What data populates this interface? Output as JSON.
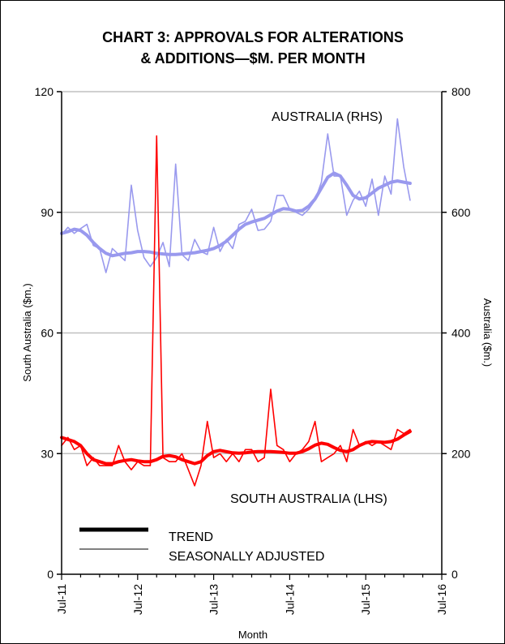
{
  "chart_data": {
    "type": "line",
    "title_line1": "CHART 3: APPROVALS FOR ALTERATIONS",
    "title_line2": "& ADDITIONS—$M. PER MONTH",
    "xlabel": "Month",
    "ylabel_left": "South Australia ($m.)",
    "ylabel_right": "Australia ($m.)",
    "ylim_left": [
      0,
      120
    ],
    "ylim_right": [
      0,
      800
    ],
    "yticks_left": [
      "0",
      "30",
      "60",
      "90",
      "120"
    ],
    "yticks_right": [
      "0",
      "200",
      "400",
      "600",
      "800"
    ],
    "xticks": [
      "Jul-11",
      "Jul-12",
      "Jul-13",
      "Jul-14",
      "Jul-15",
      "Jul-16"
    ],
    "grid": "horizontal",
    "x_start": "Jul-11",
    "x_end": "Jul-16",
    "annotations": {
      "australia": "AUSTRALIA (RHS)",
      "south_australia": "SOUTH AUSTRALIA (LHS)"
    },
    "legend": [
      {
        "label": "TREND",
        "style": "thick"
      },
      {
        "label": "SEASONALLY ADJUSTED",
        "style": "thin"
      }
    ],
    "colors": {
      "australia": "#9999ee",
      "south_australia": "#ff0000",
      "grid": "#c0c0c0"
    },
    "series": [
      {
        "axis": "right",
        "kind": "seasonally_adjusted",
        "color": "#9999ee",
        "values": [
          563,
          575,
          565,
          573,
          580,
          545,
          540,
          500,
          540,
          530,
          520,
          645,
          570,
          525,
          510,
          525,
          550,
          510,
          680,
          530,
          520,
          555,
          535,
          530,
          575,
          535,
          555,
          540,
          580,
          585,
          605,
          570,
          572,
          585,
          628,
          628,
          605,
          600,
          595,
          605,
          620,
          650,
          730,
          660,
          660,
          595,
          620,
          635,
          610,
          655,
          595,
          660,
          630,
          755,
          675,
          620
        ]
      },
      {
        "axis": "right",
        "kind": "trend",
        "color": "#9999ee",
        "values": [
          565,
          568,
          572,
          570,
          562,
          550,
          540,
          532,
          528,
          530,
          532,
          533,
          535,
          535,
          534,
          532,
          531,
          530,
          530,
          531,
          532,
          533,
          535,
          537,
          540,
          545,
          552,
          562,
          572,
          580,
          584,
          587,
          590,
          596,
          602,
          606,
          605,
          602,
          603,
          610,
          622,
          640,
          658,
          665,
          660,
          645,
          628,
          622,
          624,
          632,
          640,
          645,
          650,
          652,
          650,
          648
        ]
      },
      {
        "axis": "left",
        "kind": "seasonally_adjusted",
        "color": "#ff0000",
        "values": [
          32,
          34,
          31,
          32,
          27,
          29,
          27,
          27,
          27,
          32,
          28,
          26,
          28,
          27,
          27,
          109,
          29,
          28,
          28,
          30,
          26,
          22,
          27,
          38,
          29,
          30,
          28,
          30,
          28,
          31,
          31,
          28,
          29,
          46,
          32,
          31,
          28,
          30,
          31,
          33,
          38,
          28,
          29,
          30,
          32,
          28,
          36,
          32,
          33,
          32,
          33,
          32,
          31,
          36,
          35,
          36
        ]
      },
      {
        "axis": "left",
        "kind": "trend",
        "color": "#ff0000",
        "values": [
          34,
          33.5,
          33,
          32,
          30,
          28.5,
          28,
          27.5,
          27.5,
          28,
          28.3,
          28.5,
          28.2,
          28,
          28,
          28.5,
          29.3,
          29.5,
          29.2,
          28.5,
          28,
          27.5,
          28,
          29.5,
          30.5,
          30.8,
          30.5,
          30.2,
          30.1,
          30.2,
          30.4,
          30.5,
          30.5,
          30.5,
          30.4,
          30.3,
          30.1,
          30.1,
          30.5,
          31.2,
          32.1,
          32.6,
          32.3,
          31.5,
          30.8,
          30.5,
          31,
          32,
          32.7,
          33,
          32.9,
          32.8,
          33,
          33.6,
          34.6,
          35.5
        ]
      }
    ]
  }
}
